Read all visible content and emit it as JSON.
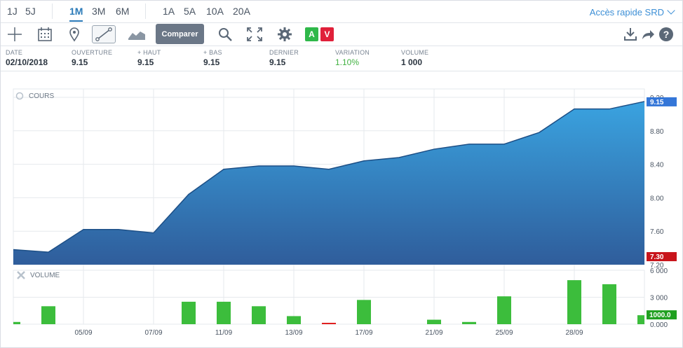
{
  "periods": {
    "group1": [
      "1J",
      "5J"
    ],
    "group2": [
      "1M",
      "3M",
      "6M"
    ],
    "group3": [
      "1A",
      "5A",
      "10A",
      "20A"
    ],
    "active": "1M"
  },
  "quick_access": "Accès rapide SRD",
  "toolbar": {
    "compare_label": "Comparer",
    "buy_label": "A",
    "sell_label": "V",
    "buy_color": "#2fb84a",
    "sell_color": "#e0203a"
  },
  "info": [
    {
      "label": "DATE",
      "value": "02/10/2018"
    },
    {
      "label": "OUVERTURE",
      "value": "9.15"
    },
    {
      "label": "+ HAUT",
      "value": "9.15"
    },
    {
      "label": "+ BAS",
      "value": "9.15"
    },
    {
      "label": "DERNIER",
      "value": "9.15"
    },
    {
      "label": "VARIATION",
      "value": "1.10%"
    },
    {
      "label": "VOLUME",
      "value": "1 000"
    }
  ],
  "chart_data": [
    {
      "type": "area",
      "title": "COURS",
      "y_ticks": [
        "9.20",
        "8.80",
        "8.40",
        "8.00",
        "7.60",
        "7.20"
      ],
      "ylim": [
        7.2,
        9.3
      ],
      "values": [
        7.38,
        7.35,
        7.62,
        7.62,
        7.58,
        8.04,
        8.34,
        8.38,
        8.38,
        8.34,
        8.44,
        8.48,
        8.58,
        8.64,
        8.64,
        8.78,
        9.06,
        9.06,
        9.15
      ],
      "last_label": "9.15",
      "min_label": "7.30",
      "colors": {
        "fill_top": "#3aa3e0",
        "fill_bottom": "#2f5d9b",
        "line": "#1d4f86",
        "last_badge": "#3476d8",
        "min_badge": "#c8141b"
      }
    },
    {
      "type": "bar",
      "title": "VOLUME",
      "y_ticks": [
        "6 000",
        "3 000",
        "0.000"
      ],
      "ylim": [
        0,
        6000
      ],
      "values": [
        250,
        2000,
        0,
        0,
        0,
        2500,
        2500,
        2000,
        900,
        50,
        2700,
        0,
        500,
        250,
        3100,
        0,
        4900,
        4450,
        1000
      ],
      "down_index": 9,
      "last_label": "1000.0",
      "colors": {
        "up": "#3cbd3c",
        "down": "#e02020",
        "badge": "#20a020"
      }
    }
  ],
  "x_labels": [
    "05/09",
    "07/09",
    "11/09",
    "13/09",
    "17/09",
    "21/09",
    "25/09",
    "28/09"
  ],
  "x_label_index": [
    2,
    4,
    6,
    8,
    10,
    12,
    14,
    16
  ]
}
